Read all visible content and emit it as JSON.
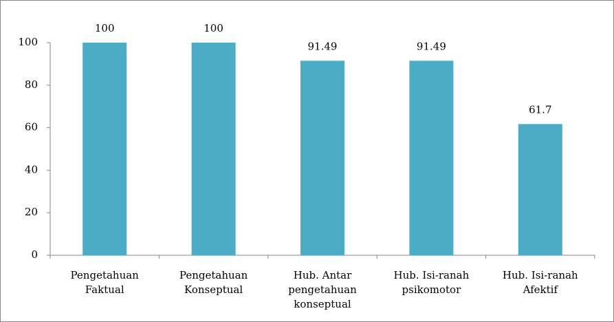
{
  "chart_data": {
    "type": "bar",
    "categories": [
      "Pengetahuan\nFaktual",
      "Pengetahuan\nKonseptual",
      "Hub. Antar\npengetahuan\nkonseptual",
      "Hub. Isi-ranah\npsikomotor",
      "Hub. Isi-ranah\nAfektif"
    ],
    "values": [
      100,
      100,
      91.49,
      91.49,
      61.7
    ],
    "color": "#4bacc6",
    "ylim": [
      0,
      100
    ],
    "yticks": [
      0,
      20,
      40,
      60,
      80,
      100
    ],
    "grid": false
  }
}
